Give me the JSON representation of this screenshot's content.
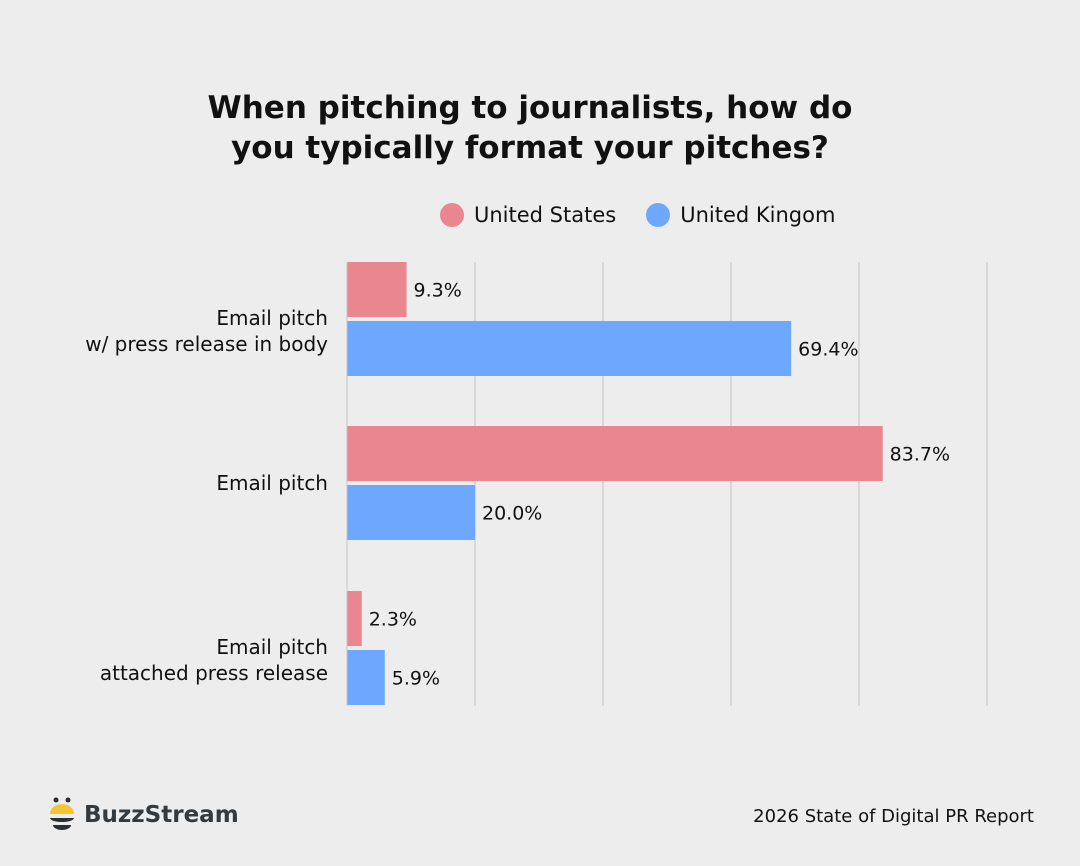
{
  "chart_data": {
    "type": "bar",
    "orientation": "horizontal",
    "title": "When pitching to journalists, how do you typically format your pitches?",
    "title_lines": [
      "When pitching to journalists, how do",
      "you typically format your pitches?"
    ],
    "categories": [
      "Email pitch\nw/ press release in body",
      "Email pitch",
      "Email pitch\nattached press release"
    ],
    "category_lines": [
      [
        "Email pitch",
        "w/ press release in body"
      ],
      [
        "Email pitch"
      ],
      [
        "Email pitch",
        "attached press release"
      ]
    ],
    "series": [
      {
        "name": "United States",
        "color": "#e98690",
        "values": [
          9.3,
          83.7,
          2.3
        ],
        "labels": [
          "9.3%",
          "83.7%",
          "2.3%"
        ]
      },
      {
        "name": "United Kingom",
        "color": "#6ea8fe",
        "values": [
          69.4,
          20.0,
          5.9
        ],
        "labels": [
          "69.4%",
          "20.0%",
          "5.9%"
        ]
      }
    ],
    "xlim": [
      0,
      100
    ],
    "grid": true,
    "legend_position": "top"
  },
  "footer": {
    "brand": "BuzzStream",
    "report": "2026 State of Digital PR Report"
  }
}
